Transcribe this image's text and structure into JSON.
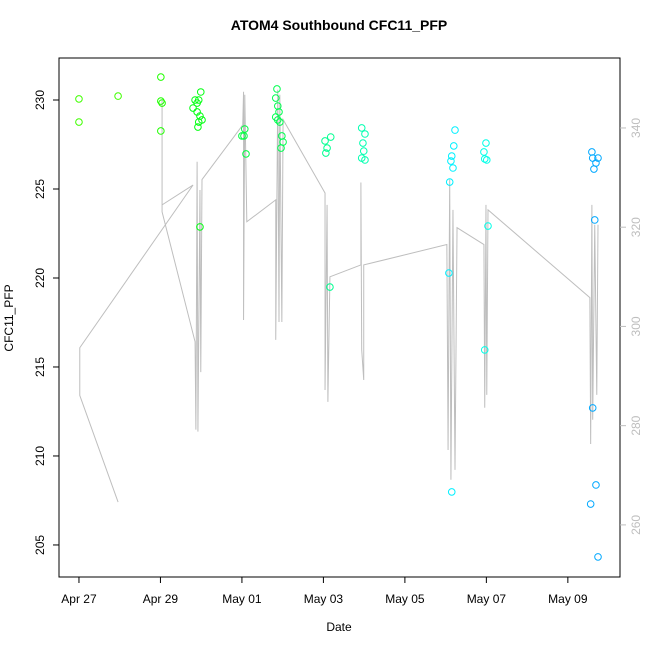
{
  "chart_data": {
    "type": "scatter",
    "title": "ATOM4 Southbound CFC11_PFP",
    "xlabel": "Date",
    "ylabel": "CFC11_PFP",
    "xlim": [
      -0.49,
      13.28
    ],
    "ylim": [
      203.2,
      232.36
    ],
    "y2lim": [
      249.5,
      354.1
    ],
    "xticks": [
      {
        "value": 0,
        "label": "Apr 27"
      },
      {
        "value": 2,
        "label": "Apr 29"
      },
      {
        "value": 4,
        "label": "May 01"
      },
      {
        "value": 6,
        "label": "May 03"
      },
      {
        "value": 8,
        "label": "May 05"
      },
      {
        "value": 10,
        "label": "May 07"
      },
      {
        "value": 12,
        "label": "May 09"
      }
    ],
    "yticks": [
      205,
      210,
      215,
      220,
      225,
      230
    ],
    "y2ticks": [
      260,
      280,
      300,
      320,
      340
    ],
    "series": [
      {
        "color": "#bebebe",
        "axis": "y2",
        "mode": "lines",
        "x": [
          0.96,
          0.02,
          0.02,
          2.8,
          2.04,
          2.04,
          2.04,
          2.85,
          2.87,
          2.9,
          2.92,
          2.97,
          2.99,
          3.02,
          4.02,
          4.04,
          4.04,
          4.07,
          4.12,
          4.83,
          4.83,
          4.88,
          4.91,
          4.93,
          4.98,
          5.01,
          6.04,
          6.04,
          6.09,
          6.11,
          6.16,
          6.92,
          6.92,
          6.94,
          6.99,
          6.99,
          9.03,
          9.06,
          9.1,
          9.13,
          9.18,
          9.23,
          9.28,
          9.94,
          9.96,
          9.99,
          10.01,
          10.04,
          12.54,
          12.56,
          12.59,
          12.61,
          12.66,
          12.71,
          12.74
        ],
        "values": [
          264.6,
          286.1,
          295.7,
          328.5,
          324.5,
          345.7,
          323.1,
          296.9,
          279.2,
          333.2,
          278.8,
          327.5,
          290.8,
          329.6,
          340.6,
          347.3,
          301.3,
          346.7,
          321.1,
          325.5,
          297.3,
          347.7,
          300.9,
          346.7,
          300.9,
          341.7,
          326.9,
          287.2,
          324.5,
          284.8,
          310,
          312.4,
          329,
          295.3,
          289.2,
          312.4,
          316.5,
          275.1,
          329.6,
          269.1,
          323.5,
          271.1,
          319.9,
          316.5,
          283.6,
          324.5,
          286.2,
          323.5,
          305.8,
          276.3,
          324.5,
          281.2,
          320.5,
          286.2,
          320.5
        ]
      },
      {
        "color": "#40ff00",
        "x": [
          0,
          0,
          0.96
        ],
        "values": [
          230.06,
          228.76,
          230.22
        ]
      },
      {
        "color": "#20ff00",
        "x": [
          2.01,
          2.01,
          2.04,
          2.01
        ],
        "values": [
          231.29,
          229.94,
          229.83,
          228.26
        ]
      },
      {
        "color": "#00ff10",
        "x": [
          2.85,
          2.9,
          2.94,
          2.8,
          2.99,
          2.9,
          2.97,
          2.94,
          3.02,
          2.92,
          2.97
        ],
        "values": [
          230,
          229.83,
          230,
          229.55,
          230.45,
          229.33,
          229.1,
          228.76,
          228.88,
          228.48,
          222.87
        ]
      },
      {
        "color": "#00ff40",
        "x": [
          4,
          4.07,
          4.1,
          4.05
        ],
        "values": [
          227.98,
          228.37,
          226.97,
          227.98
        ]
      },
      {
        "color": "#00ff50",
        "x": [
          4.86,
          4.83,
          4.88,
          4.91,
          4.93,
          4.98,
          4.96,
          4.88,
          4.83,
          5.01
        ],
        "values": [
          230.62,
          230.11,
          229.66,
          229.33,
          228.76,
          227.98,
          227.3,
          228.88,
          229.04,
          227.64
        ]
      },
      {
        "color": "#00ff90",
        "x": [
          6.04,
          6.09,
          6.06,
          6.18,
          6.16
        ],
        "values": [
          227.7,
          227.3,
          227.02,
          227.92,
          219.49
        ]
      },
      {
        "color": "#00ffb0",
        "x": [
          6.94,
          7.02,
          6.97,
          6.99,
          6.94,
          7.02
        ],
        "values": [
          228.43,
          228.09,
          227.58,
          227.13,
          226.74,
          226.63
        ]
      },
      {
        "color": "#00f0ff",
        "x": [
          9.15,
          9.23,
          9.18,
          9.1,
          9.08,
          9.15,
          9.2,
          9.13
        ],
        "values": [
          226.85,
          228.31,
          226.18,
          225.39,
          220.28,
          207.98,
          227.42,
          226.57
        ]
      },
      {
        "color": "#00ffe8",
        "x": [
          9.99,
          9.94,
          10.01,
          9.96,
          9.96,
          10.04
        ],
        "values": [
          227.58,
          227.08,
          226.63,
          226.69,
          215.96,
          222.92
        ]
      },
      {
        "color": "#00a8ff",
        "x": [
          12.59,
          12.61,
          12.64,
          12.74,
          12.69,
          12.66,
          12.61,
          12.69,
          12.56,
          12.74
        ],
        "values": [
          227.08,
          226.74,
          226.12,
          226.74,
          226.46,
          223.26,
          212.7,
          208.37,
          207.3,
          204.33
        ]
      }
    ]
  }
}
